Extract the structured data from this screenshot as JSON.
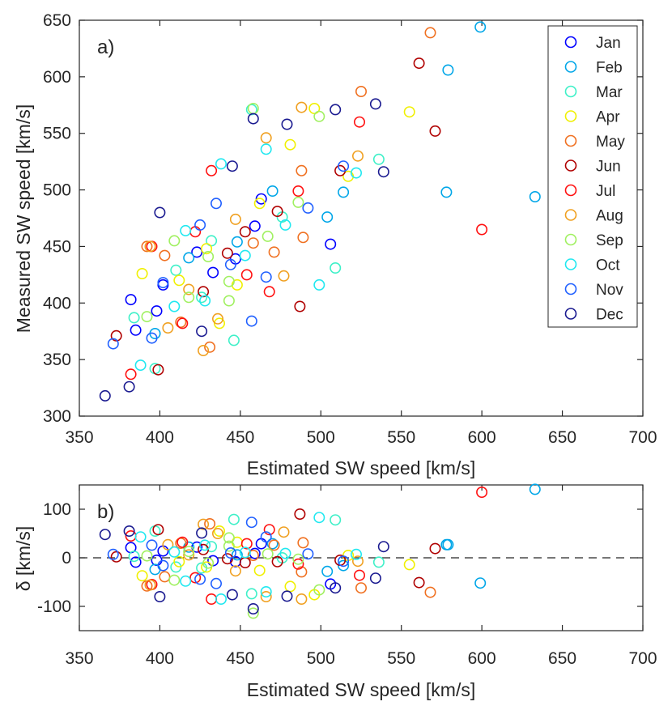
{
  "chart_data": [
    {
      "type": "scatter",
      "panel_label": "a)",
      "xlabel": "Estimated SW speed [km/s]",
      "ylabel": "Measured SW speed [km/s]",
      "xlim": [
        350,
        700
      ],
      "ylim": [
        300,
        650
      ],
      "xticks": [
        "350",
        "400",
        "450",
        "500",
        "550",
        "600",
        "650",
        "700"
      ],
      "yticks": [
        "300",
        "350",
        "400",
        "450",
        "500",
        "550",
        "600",
        "650"
      ],
      "grid": false,
      "legend_position": "top-right",
      "series": [
        {
          "name": "Jan",
          "color": "#0000ff",
          "points": [
            [
              382,
              403
            ],
            [
              402,
              416
            ],
            [
              423,
              445
            ],
            [
              447,
              439
            ],
            [
              463,
              492
            ],
            [
              506,
              452
            ],
            [
              398,
              393
            ],
            [
              433,
              427
            ],
            [
              459,
              468
            ],
            [
              385,
              376
            ]
          ]
        },
        {
          "name": "Feb",
          "color": "#00a6e8",
          "points": [
            [
              599,
              644
            ],
            [
              579,
              606
            ],
            [
              578,
              498
            ],
            [
              633,
              494
            ],
            [
              514,
              498
            ],
            [
              397,
              373
            ],
            [
              418,
              440
            ],
            [
              448,
              454
            ],
            [
              470,
              499
            ],
            [
              504,
              476
            ]
          ]
        },
        {
          "name": "Mar",
          "color": "#3ef0c8",
          "points": [
            [
              457,
              571
            ],
            [
              536,
              527
            ],
            [
              509,
              431
            ],
            [
              446,
              367
            ],
            [
              384,
              387
            ],
            [
              410,
              429
            ],
            [
              432,
              455
            ],
            [
              476,
              476
            ],
            [
              426,
              405
            ],
            [
              397,
              342
            ]
          ]
        },
        {
          "name": "Apr",
          "color": "#f0f000",
          "points": [
            [
              555,
              569
            ],
            [
              496,
              572
            ],
            [
              481,
              540
            ],
            [
              389,
              426
            ],
            [
              429,
              448
            ],
            [
              462,
              488
            ],
            [
              448,
              416
            ],
            [
              412,
              420
            ],
            [
              437,
              382
            ],
            [
              517,
              512
            ]
          ]
        },
        {
          "name": "May",
          "color": "#f07020",
          "points": [
            [
              568,
              639
            ],
            [
              525,
              587
            ],
            [
              488,
              517
            ],
            [
              431,
              361
            ],
            [
              403,
              442
            ],
            [
              458,
              453
            ],
            [
              489,
              458
            ],
            [
              413,
              383
            ],
            [
              392,
              450
            ],
            [
              471,
              445
            ]
          ]
        },
        {
          "name": "Jun",
          "color": "#b00000",
          "points": [
            [
              561,
              612
            ],
            [
              571,
              552
            ],
            [
              512,
              517
            ],
            [
              487,
              397
            ],
            [
              427,
              410
            ],
            [
              399,
              341
            ],
            [
              442,
              444
            ],
            [
              473,
              481
            ],
            [
              453,
              463
            ],
            [
              373,
              371
            ]
          ]
        },
        {
          "name": "Jul",
          "color": "#ff1010",
          "points": [
            [
              600,
              465
            ],
            [
              524,
              560
            ],
            [
              468,
              410
            ],
            [
              432,
              517
            ],
            [
              395,
              450
            ],
            [
              454,
              425
            ],
            [
              414,
              382
            ],
            [
              486,
              499
            ],
            [
              422,
              463
            ],
            [
              382,
              337
            ]
          ]
        },
        {
          "name": "Aug",
          "color": "#f0a020",
          "points": [
            [
              488,
              573
            ],
            [
              523,
              530
            ],
            [
              466,
              546
            ],
            [
              436,
              386
            ],
            [
              405,
              378
            ],
            [
              447,
              474
            ],
            [
              477,
              424
            ],
            [
              418,
              412
            ],
            [
              394,
              450
            ],
            [
              427,
              358
            ]
          ]
        },
        {
          "name": "Sep",
          "color": "#a0f060",
          "points": [
            [
              458,
              572
            ],
            [
              499,
              565
            ],
            [
              443,
              402
            ],
            [
              418,
              405
            ],
            [
              392,
              388
            ],
            [
              430,
              441
            ],
            [
              467,
              459
            ],
            [
              486,
              489
            ],
            [
              409,
              455
            ],
            [
              443,
              419
            ]
          ]
        },
        {
          "name": "Oct",
          "color": "#20e8f0",
          "points": [
            [
              466,
              536
            ],
            [
              522,
              515
            ],
            [
              438,
              523
            ],
            [
              478,
              469
            ],
            [
              428,
              402
            ],
            [
              388,
              345
            ],
            [
              409,
              397
            ],
            [
              453,
              442
            ],
            [
              499,
              416
            ],
            [
              416,
              464
            ]
          ]
        },
        {
          "name": "Nov",
          "color": "#2060ff",
          "points": [
            [
              457,
              384
            ],
            [
              514,
              521
            ],
            [
              492,
              484
            ],
            [
              425,
              469
            ],
            [
              444,
              434
            ],
            [
              402,
              418
            ],
            [
              371,
              364
            ],
            [
              466,
              423
            ],
            [
              435,
              488
            ],
            [
              395,
              369
            ]
          ]
        },
        {
          "name": "Dec",
          "color": "#1a1a90",
          "points": [
            [
              366,
              318
            ],
            [
              381,
              326
            ],
            [
              400,
              480
            ],
            [
              539,
              516
            ],
            [
              509,
              571
            ],
            [
              534,
              576
            ],
            [
              479,
              558
            ],
            [
              458,
              563
            ],
            [
              445,
              521
            ],
            [
              426,
              375
            ]
          ]
        }
      ]
    },
    {
      "type": "scatter",
      "panel_label": "b)",
      "xlabel": "Estimated SW speed [km/s]",
      "ylabel": "δ [km/s]",
      "xlim": [
        350,
        700
      ],
      "ylim": [
        -150,
        150
      ],
      "xticks": [
        "350",
        "400",
        "450",
        "500",
        "550",
        "600",
        "650",
        "700"
      ],
      "yticks": [
        "-100",
        "0",
        "100"
      ],
      "reference_line": {
        "y": 0,
        "style": "dashed"
      },
      "series": [
        {
          "name": "Jan",
          "color": "#0000ff",
          "points": [
            [
              382,
              21
            ],
            [
              402,
              14
            ],
            [
              423,
              22
            ],
            [
              447,
              -8
            ],
            [
              463,
              29
            ],
            [
              506,
              -54
            ],
            [
              398,
              -5
            ],
            [
              433,
              -6
            ],
            [
              459,
              9
            ],
            [
              385,
              -9
            ]
          ]
        },
        {
          "name": "Feb",
          "color": "#00a6e8",
          "points": [
            [
              599,
              -52
            ],
            [
              579,
              27
            ],
            [
              578,
              27
            ],
            [
              633,
              141
            ],
            [
              514,
              -16
            ],
            [
              397,
              -24
            ],
            [
              418,
              22
            ],
            [
              448,
              6
            ],
            [
              470,
              29
            ],
            [
              504,
              -28
            ]
          ]
        },
        {
          "name": "Mar",
          "color": "#3ef0c8",
          "points": [
            [
              457,
              -74
            ],
            [
              536,
              -9
            ],
            [
              509,
              78
            ],
            [
              446,
              79
            ],
            [
              384,
              3
            ],
            [
              410,
              -19
            ],
            [
              432,
              23
            ],
            [
              476,
              0
            ],
            [
              426,
              -21
            ],
            [
              397,
              55
            ]
          ]
        },
        {
          "name": "Apr",
          "color": "#f0f000",
          "points": [
            [
              555,
              -14
            ],
            [
              496,
              -76
            ],
            [
              481,
              -59
            ],
            [
              389,
              -37
            ],
            [
              429,
              -19
            ],
            [
              462,
              -26
            ],
            [
              448,
              32
            ],
            [
              412,
              -8
            ],
            [
              437,
              55
            ],
            [
              517,
              5
            ]
          ]
        },
        {
          "name": "May",
          "color": "#f07020",
          "points": [
            [
              568,
              -71
            ],
            [
              525,
              -62
            ],
            [
              488,
              -29
            ],
            [
              431,
              70
            ],
            [
              403,
              -39
            ],
            [
              458,
              5
            ],
            [
              489,
              31
            ],
            [
              413,
              30
            ],
            [
              392,
              -58
            ],
            [
              471,
              26
            ]
          ]
        },
        {
          "name": "Jun",
          "color": "#b00000",
          "points": [
            [
              561,
              -51
            ],
            [
              571,
              19
            ],
            [
              512,
              -5
            ],
            [
              487,
              90
            ],
            [
              427,
              17
            ],
            [
              399,
              58
            ],
            [
              442,
              -2
            ],
            [
              473,
              -8
            ],
            [
              453,
              -10
            ],
            [
              373,
              2
            ]
          ]
        },
        {
          "name": "Jul",
          "color": "#ff1010",
          "points": [
            [
              600,
              135
            ],
            [
              524,
              -36
            ],
            [
              468,
              58
            ],
            [
              432,
              -85
            ],
            [
              395,
              -55
            ],
            [
              454,
              29
            ],
            [
              414,
              32
            ],
            [
              486,
              -13
            ],
            [
              422,
              -41
            ],
            [
              382,
              45
            ]
          ]
        },
        {
          "name": "Aug",
          "color": "#f0a020",
          "points": [
            [
              488,
              -85
            ],
            [
              523,
              -7
            ],
            [
              466,
              -80
            ],
            [
              436,
              50
            ],
            [
              405,
              27
            ],
            [
              447,
              -27
            ],
            [
              477,
              53
            ],
            [
              418,
              6
            ],
            [
              394,
              -56
            ],
            [
              427,
              69
            ]
          ]
        },
        {
          "name": "Sep",
          "color": "#a0f060",
          "points": [
            [
              458,
              -114
            ],
            [
              499,
              -66
            ],
            [
              443,
              41
            ],
            [
              418,
              13
            ],
            [
              392,
              4
            ],
            [
              430,
              -11
            ],
            [
              467,
              8
            ],
            [
              486,
              -3
            ],
            [
              409,
              -46
            ],
            [
              443,
              24
            ]
          ]
        },
        {
          "name": "Oct",
          "color": "#20e8f0",
          "points": [
            [
              466,
              -70
            ],
            [
              522,
              7
            ],
            [
              438,
              -85
            ],
            [
              478,
              9
            ],
            [
              428,
              26
            ],
            [
              388,
              43
            ],
            [
              409,
              12
            ],
            [
              453,
              11
            ],
            [
              499,
              83
            ],
            [
              416,
              -48
            ]
          ]
        },
        {
          "name": "Nov",
          "color": "#2060ff",
          "points": [
            [
              457,
              73
            ],
            [
              514,
              -7
            ],
            [
              492,
              8
            ],
            [
              425,
              -44
            ],
            [
              444,
              10
            ],
            [
              402,
              -16
            ],
            [
              371,
              7
            ],
            [
              466,
              43
            ],
            [
              435,
              -53
            ],
            [
              395,
              26
            ]
          ]
        },
        {
          "name": "Dec",
          "color": "#1a1a90",
          "points": [
            [
              366,
              48
            ],
            [
              381,
              55
            ],
            [
              400,
              -80
            ],
            [
              539,
              23
            ],
            [
              509,
              -62
            ],
            [
              534,
              -42
            ],
            [
              479,
              -79
            ],
            [
              458,
              -105
            ],
            [
              445,
              -76
            ],
            [
              426,
              51
            ]
          ]
        }
      ]
    }
  ]
}
